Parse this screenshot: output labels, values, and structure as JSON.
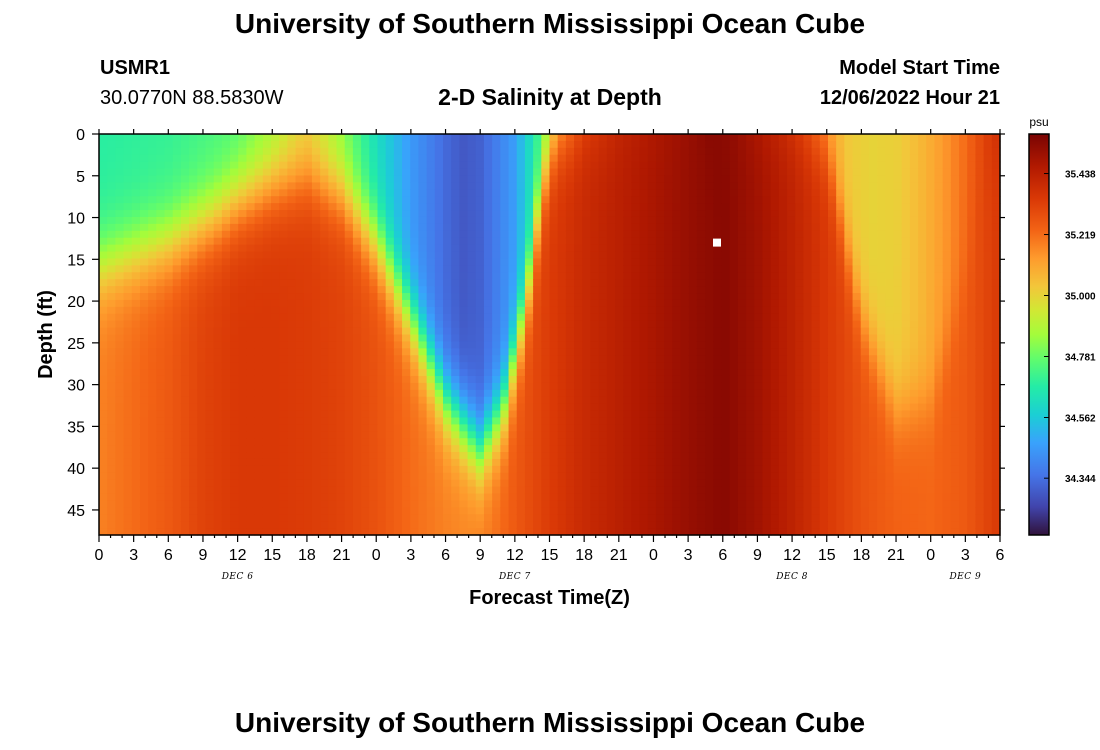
{
  "header": {
    "title": "University of Southern Mississippi Ocean Cube",
    "station": "USMR1",
    "coords": "30.0770N  88.5830W",
    "plot_title": "2-D Salinity at Depth",
    "model_label": "Model Start Time",
    "model_time": "12/06/2022 Hour 21"
  },
  "footer": {
    "title": "University of Southern Mississippi Ocean Cube"
  },
  "chart_data": {
    "type": "heatmap",
    "title": "2-D Salinity at Depth",
    "xlabel": "Forecast Time(Z)",
    "ylabel": "Depth (ft)",
    "x_range_hours": [
      0,
      78
    ],
    "x_ticks": [
      "0",
      "3",
      "6",
      "9",
      "12",
      "15",
      "18",
      "21",
      "0",
      "3",
      "6",
      "9",
      "12",
      "15",
      "18",
      "21",
      "0",
      "3",
      "6",
      "9",
      "12",
      "15",
      "18",
      "21",
      "0",
      "3",
      "6"
    ],
    "date_labels": [
      {
        "label": "DEC 6",
        "hour": 12
      },
      {
        "label": "DEC 7",
        "hour": 36
      },
      {
        "label": "DEC 8",
        "hour": 60
      },
      {
        "label": "DEC 9",
        "hour": 75
      }
    ],
    "y_ticks": [
      0,
      5,
      10,
      15,
      20,
      25,
      30,
      35,
      40,
      45
    ],
    "ylim": [
      0,
      48
    ],
    "colorbar": {
      "unit": "psu",
      "min": 34.14,
      "max": 35.58,
      "ticks": [
        "35.438",
        "35.219",
        "35.000",
        "34.781",
        "34.562",
        "34.344"
      ]
    },
    "marker": {
      "hour": 53.5,
      "depth_ft": 13
    },
    "surface_profile_psu": [
      [
        0,
        34.68
      ],
      [
        6,
        34.7
      ],
      [
        12,
        34.75
      ],
      [
        15,
        34.85
      ],
      [
        17,
        34.95
      ],
      [
        18,
        34.98
      ],
      [
        19,
        34.94
      ],
      [
        21,
        34.82
      ],
      [
        24,
        34.62
      ],
      [
        27,
        34.45
      ],
      [
        30,
        34.33
      ],
      [
        31.5,
        34.29
      ],
      [
        33,
        34.31
      ],
      [
        36,
        34.46
      ],
      [
        38,
        34.7
      ],
      [
        40,
        35.0
      ],
      [
        42,
        35.28
      ],
      [
        45,
        35.4
      ],
      [
        48,
        35.46
      ],
      [
        51,
        35.51
      ],
      [
        53,
        35.56
      ],
      [
        55,
        35.52
      ],
      [
        57,
        35.45
      ],
      [
        59,
        35.38
      ],
      [
        61,
        35.28
      ],
      [
        62,
        35.2
      ],
      [
        63,
        35.12
      ],
      [
        65,
        35.02
      ],
      [
        67,
        35.0
      ],
      [
        69,
        35.01
      ],
      [
        71,
        35.06
      ],
      [
        73,
        35.13
      ],
      [
        75,
        35.22
      ],
      [
        77,
        35.34
      ],
      [
        78,
        35.4
      ]
    ],
    "bottom_profile_psu": [
      [
        0,
        35.18
      ],
      [
        3,
        35.22
      ],
      [
        6,
        35.26
      ],
      [
        9,
        35.32
      ],
      [
        12,
        35.35
      ],
      [
        15,
        35.35
      ],
      [
        18,
        35.34
      ],
      [
        21,
        35.32
      ],
      [
        24,
        35.28
      ],
      [
        27,
        35.22
      ],
      [
        30,
        35.18
      ],
      [
        32,
        35.17
      ],
      [
        34,
        35.2
      ],
      [
        36,
        35.26
      ],
      [
        39,
        35.34
      ],
      [
        42,
        35.4
      ],
      [
        45,
        35.44
      ],
      [
        48,
        35.48
      ],
      [
        51,
        35.52
      ],
      [
        54,
        35.55
      ],
      [
        57,
        35.5
      ],
      [
        60,
        35.43
      ],
      [
        63,
        35.35
      ],
      [
        66,
        35.28
      ],
      [
        69,
        35.24
      ],
      [
        72,
        35.23
      ],
      [
        75,
        35.26
      ],
      [
        78,
        35.35
      ]
    ],
    "mixed_layer_depth_ft": [
      [
        0,
        16
      ],
      [
        6,
        13
      ],
      [
        10,
        10
      ],
      [
        12,
        8
      ],
      [
        15,
        6
      ],
      [
        18,
        5
      ],
      [
        21,
        7
      ],
      [
        24,
        13
      ],
      [
        27,
        22
      ],
      [
        30,
        32
      ],
      [
        32,
        36
      ],
      [
        33,
        38
      ],
      [
        35,
        33
      ],
      [
        37,
        20
      ],
      [
        38,
        10
      ],
      [
        39,
        2
      ],
      [
        40,
        0
      ],
      [
        60,
        0
      ],
      [
        63,
        2
      ],
      [
        66,
        22
      ],
      [
        69,
        33
      ],
      [
        72,
        32
      ],
      [
        75,
        18
      ],
      [
        77,
        5
      ],
      [
        78,
        0
      ]
    ]
  }
}
